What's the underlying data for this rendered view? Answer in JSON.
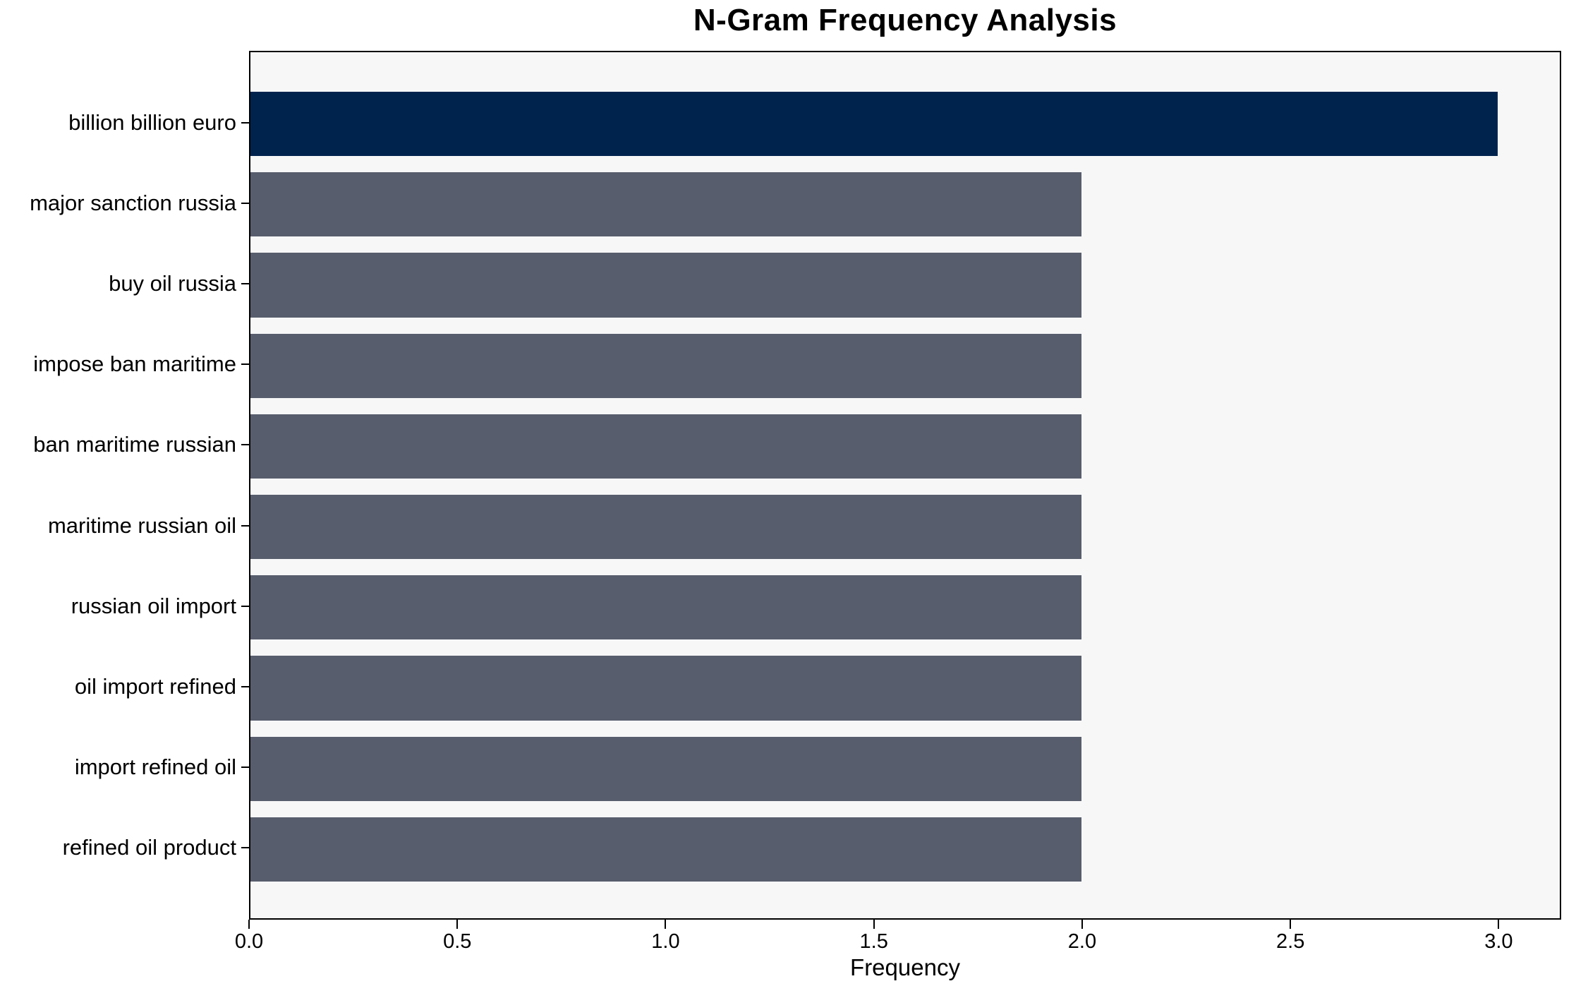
{
  "chart_data": {
    "type": "bar",
    "orientation": "horizontal",
    "title": "N-Gram Frequency Analysis",
    "xlabel": "Frequency",
    "ylabel": "",
    "categories": [
      "billion billion euro",
      "major sanction russia",
      "buy oil russia",
      "impose ban maritime",
      "ban maritime russian",
      "maritime russian oil",
      "russian oil import",
      "oil import refined",
      "import refined oil",
      "refined oil product"
    ],
    "values": [
      3,
      2,
      2,
      2,
      2,
      2,
      2,
      2,
      2,
      2
    ],
    "xlim": [
      0,
      3.15
    ],
    "xticks": [
      "0.0",
      "0.5",
      "1.0",
      "1.5",
      "2.0",
      "2.5",
      "3.0"
    ],
    "bar_colors": [
      "#00234E",
      "#575D6C",
      "#575D6C",
      "#575D6C",
      "#575D6C",
      "#575D6C",
      "#575D6C",
      "#575D6C",
      "#575D6C",
      "#575D6C"
    ],
    "colors": {
      "highlight": "#00234E",
      "bar_default": "#575D6C",
      "plot_background": "#F7F7F8",
      "spine": "#000000",
      "page_background": "#FFFFFF"
    },
    "grid": false,
    "legend": null
  }
}
